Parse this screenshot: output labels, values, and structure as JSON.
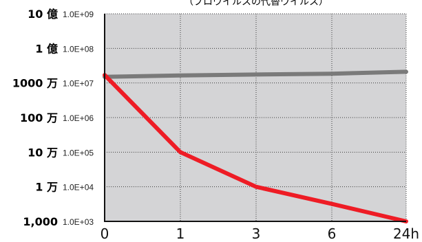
{
  "chart_data": {
    "type": "line",
    "title": "",
    "subtitle": "（ブロウイルスの代替ウイルス）",
    "xlabel": "",
    "ylabel": "",
    "y_scale": "log",
    "ylim": [
      1000,
      1000000000
    ],
    "grid": true,
    "grid_style": "dotted",
    "background": "#d4d4d6",
    "x_categories": [
      "0",
      "1",
      "3",
      "6",
      "24h"
    ],
    "y_ticks": [
      {
        "value": 1000000000,
        "label_jp": "10 億",
        "label_sci": "1.0E+09"
      },
      {
        "value": 100000000,
        "label_jp": "1 億",
        "label_sci": "1.0E+08"
      },
      {
        "value": 10000000,
        "label_jp": "1000 万",
        "label_sci": "1.0E+07"
      },
      {
        "value": 1000000,
        "label_jp": "100 万",
        "label_sci": "1.0E+06"
      },
      {
        "value": 100000,
        "label_jp": "10 万",
        "label_sci": "1.0E+05"
      },
      {
        "value": 10000,
        "label_jp": "1 万",
        "label_sci": "1.0E+04"
      },
      {
        "value": 1000,
        "label_jp": "1,000",
        "label_sci": "1.0E+03"
      }
    ],
    "series": [
      {
        "color": "#7a7a7a",
        "values": [
          15000000,
          16500000,
          17500000,
          18500000,
          21000000
        ]
      },
      {
        "color": "#ee1c25",
        "values": [
          17000000,
          100000,
          10000,
          3200,
          1000
        ]
      }
    ]
  }
}
